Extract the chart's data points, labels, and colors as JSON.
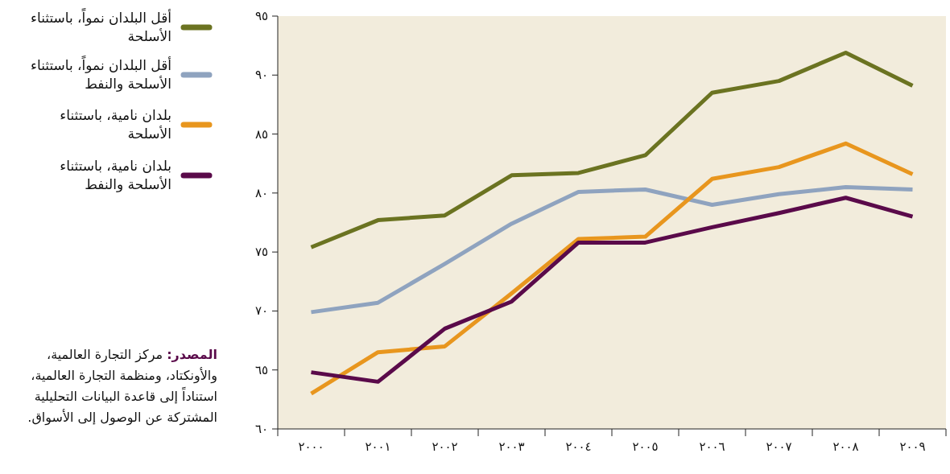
{
  "chart_data": {
    "type": "line",
    "categories": [
      "٢٠٠٠",
      "٢٠٠١",
      "٢٠٠٢",
      "٢٠٠٣",
      "٢٠٠٤",
      "٢٠٠٥",
      "٢٠٠٦",
      "٢٠٠٧",
      "٢٠٠٨",
      "٢٠٠٩"
    ],
    "ylim": [
      60,
      95
    ],
    "yticks": [
      {
        "value": 60,
        "label": "٦٠"
      },
      {
        "value": 65,
        "label": "٦٥"
      },
      {
        "value": 70,
        "label": "٧٠"
      },
      {
        "value": 75,
        "label": "٧٥"
      },
      {
        "value": 80,
        "label": "٨٠"
      },
      {
        "value": 85,
        "label": "٨٥"
      },
      {
        "value": 90,
        "label": "٩٠"
      },
      {
        "value": 95,
        "label": "٩٥"
      }
    ],
    "legend": "left",
    "marker": "none",
    "line_style": "solid",
    "grid": false,
    "series": [
      {
        "name": "أقل البلدان نمواً، باستثناء الأسلحة",
        "color": "#6b7321",
        "values": [
          75.4,
          77.7,
          78.1,
          81.5,
          81.7,
          83.2,
          88.5,
          89.5,
          91.9,
          89.1
        ]
      },
      {
        "name": "أقل البلدان نمواً، باستثناء الأسلحة والنفط",
        "color": "#8fa3bf",
        "values": [
          69.9,
          70.7,
          74.0,
          77.4,
          80.1,
          80.3,
          79.0,
          79.9,
          80.5,
          80.3
        ]
      },
      {
        "name": "بلدان نامية، باستثناء الأسلحة",
        "color": "#e8961e",
        "values": [
          63.0,
          66.5,
          67.0,
          71.5,
          76.1,
          76.3,
          81.2,
          82.2,
          84.2,
          81.6
        ]
      },
      {
        "name": "بلدان نامية، باستثناء الأسلحة والنفط",
        "color": "#5a0a4a",
        "values": [
          64.8,
          64.0,
          68.5,
          70.8,
          75.8,
          75.8,
          77.1,
          78.3,
          79.6,
          78.0
        ]
      }
    ],
    "annotations": [
      "**المصدر:** مركز التجارة العالمية، والأونكتاد، ومنظمة التجارة العالمية، استناداً إلى قاعدة البيانات التحليلية المشتركة عن الوصول إلى الأسواق."
    ]
  }
}
